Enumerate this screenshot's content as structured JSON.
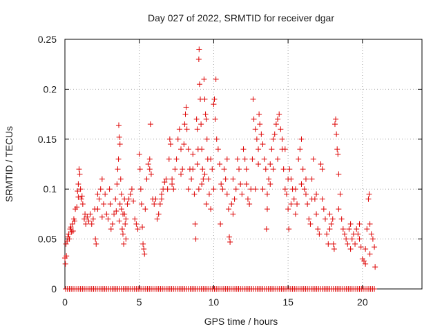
{
  "chart_data": {
    "type": "scatter",
    "title": "Day 027 of 2022, SRMTID for receiver dgar",
    "xlabel": "GPS time / hours",
    "ylabel": "SRMTID / TECUs",
    "xlim": [
      0,
      24
    ],
    "ylim": [
      0,
      0.25
    ],
    "xticks": [
      0,
      5,
      10,
      15,
      20
    ],
    "xtick_labels": [
      "0",
      "5",
      "10",
      "15",
      "20"
    ],
    "yticks": [
      0,
      0.05,
      0.1,
      0.15,
      0.2,
      0.25
    ],
    "ytick_labels": [
      "0",
      "0.05",
      "0.1",
      "0.15",
      "0.2",
      "0.25"
    ],
    "grid": true,
    "marker": "plus",
    "color": "#dd0000",
    "series": [
      {
        "name": "SRMTID",
        "zero_markers": {
          "x_start": 0.05,
          "x_end": 20.9,
          "step": 0.125,
          "y": 0
        },
        "points": [
          [
            0.0,
            0.031
          ],
          [
            0.03,
            0.025
          ],
          [
            0.07,
            0.045
          ],
          [
            0.1,
            0.033
          ],
          [
            0.15,
            0.048
          ],
          [
            0.2,
            0.052
          ],
          [
            0.25,
            0.055
          ],
          [
            0.3,
            0.05
          ],
          [
            0.35,
            0.06
          ],
          [
            0.4,
            0.062
          ],
          [
            0.45,
            0.057
          ],
          [
            0.5,
            0.065
          ],
          [
            0.55,
            0.058
          ],
          [
            0.6,
            0.07
          ],
          [
            0.65,
            0.068
          ],
          [
            0.7,
            0.08
          ],
          [
            0.8,
            0.082
          ],
          [
            0.85,
            0.098
          ],
          [
            0.9,
            0.092
          ],
          [
            0.95,
            0.12
          ],
          [
            1.0,
            0.115
          ],
          [
            1.05,
            0.1
          ],
          [
            1.1,
            0.09
          ],
          [
            1.2,
            0.085
          ],
          [
            1.3,
            0.07
          ],
          [
            1.35,
            0.075
          ],
          [
            1.4,
            0.065
          ],
          [
            1.5,
            0.072
          ],
          [
            1.6,
            0.068
          ],
          [
            1.7,
            0.075
          ],
          [
            1.8,
            0.065
          ],
          [
            1.9,
            0.07
          ],
          [
            2.0,
            0.08
          ],
          [
            2.05,
            0.05
          ],
          [
            2.1,
            0.045
          ],
          [
            2.2,
            0.095
          ],
          [
            2.3,
            0.09
          ],
          [
            2.4,
            0.1
          ],
          [
            2.5,
            0.11
          ],
          [
            2.6,
            0.085
          ],
          [
            2.7,
            0.095
          ],
          [
            2.8,
            0.075
          ],
          [
            2.9,
            0.07
          ],
          [
            3.0,
            0.1
          ],
          [
            3.05,
            0.085
          ],
          [
            3.1,
            0.06
          ],
          [
            3.2,
            0.065
          ],
          [
            3.3,
            0.075
          ],
          [
            3.4,
            0.09
          ],
          [
            3.5,
            0.105
          ],
          [
            3.55,
            0.12
          ],
          [
            3.6,
            0.13
          ],
          [
            3.62,
            0.164
          ],
          [
            3.65,
            0.152
          ],
          [
            3.7,
            0.145
          ],
          [
            3.75,
            0.11
          ],
          [
            3.8,
            0.08
          ],
          [
            3.85,
            0.06
          ],
          [
            3.9,
            0.055
          ],
          [
            3.95,
            0.045
          ],
          [
            4.0,
            0.075
          ],
          [
            4.05,
            0.065
          ],
          [
            4.1,
            0.07
          ],
          [
            4.2,
            0.085
          ],
          [
            4.3,
            0.09
          ],
          [
            4.4,
            0.095
          ],
          [
            4.5,
            0.1
          ],
          [
            4.6,
            0.088
          ],
          [
            4.7,
            0.07
          ],
          [
            4.8,
            0.065
          ],
          [
            4.9,
            0.06
          ],
          [
            5.0,
            0.135
          ],
          [
            5.05,
            0.12
          ],
          [
            5.1,
            0.1
          ],
          [
            5.15,
            0.085
          ],
          [
            5.2,
            0.062
          ],
          [
            5.25,
            0.045
          ],
          [
            5.3,
            0.04
          ],
          [
            5.35,
            0.035
          ],
          [
            5.4,
            0.08
          ],
          [
            5.5,
            0.11
          ],
          [
            5.6,
            0.125
          ],
          [
            5.7,
            0.13
          ],
          [
            5.75,
            0.165
          ],
          [
            5.8,
            0.115
          ],
          [
            5.9,
            0.09
          ],
          [
            6.0,
            0.085
          ],
          [
            6.1,
            0.09
          ],
          [
            6.2,
            0.07
          ],
          [
            6.3,
            0.075
          ],
          [
            6.4,
            0.085
          ],
          [
            6.5,
            0.095
          ],
          [
            6.6,
            0.1
          ],
          [
            6.7,
            0.107
          ],
          [
            6.8,
            0.11
          ],
          [
            6.9,
            0.1
          ],
          [
            7.0,
            0.13
          ],
          [
            7.05,
            0.15
          ],
          [
            7.1,
            0.145
          ],
          [
            7.2,
            0.105
          ],
          [
            7.3,
            0.1
          ],
          [
            7.4,
            0.12
          ],
          [
            7.5,
            0.13
          ],
          [
            7.6,
            0.15
          ],
          [
            7.7,
            0.16
          ],
          [
            7.8,
            0.14
          ],
          [
            7.9,
            0.12
          ],
          [
            8.0,
            0.145
          ],
          [
            8.05,
            0.165
          ],
          [
            8.1,
            0.175
          ],
          [
            8.15,
            0.182
          ],
          [
            8.2,
            0.16
          ],
          [
            8.3,
            0.14
          ],
          [
            8.4,
            0.12
          ],
          [
            8.5,
            0.11
          ],
          [
            8.6,
            0.12
          ],
          [
            8.7,
            0.095
          ],
          [
            8.75,
            0.065
          ],
          [
            8.8,
            0.05
          ],
          [
            8.85,
            0.17
          ],
          [
            8.9,
            0.16
          ],
          [
            8.95,
            0.14
          ],
          [
            9.0,
            0.23
          ],
          [
            9.02,
            0.24
          ],
          [
            9.05,
            0.205
          ],
          [
            9.1,
            0.19
          ],
          [
            9.15,
            0.165
          ],
          [
            9.2,
            0.14
          ],
          [
            9.25,
            0.12
          ],
          [
            9.3,
            0.11
          ],
          [
            9.35,
            0.21
          ],
          [
            9.4,
            0.19
          ],
          [
            9.45,
            0.175
          ],
          [
            9.5,
            0.17
          ],
          [
            9.55,
            0.15
          ],
          [
            9.6,
            0.13
          ],
          [
            9.65,
            0.11
          ],
          [
            9.7,
            0.095
          ],
          [
            9.8,
            0.08
          ],
          [
            9.9,
            0.12
          ],
          [
            10.0,
            0.185
          ],
          [
            10.05,
            0.19
          ],
          [
            10.1,
            0.17
          ],
          [
            10.15,
            0.21
          ],
          [
            10.2,
            0.15
          ],
          [
            10.3,
            0.14
          ],
          [
            10.4,
            0.125
          ],
          [
            10.45,
            0.065
          ],
          [
            10.5,
            0.105
          ],
          [
            10.6,
            0.1
          ],
          [
            10.7,
            0.12
          ],
          [
            10.8,
            0.11
          ],
          [
            10.9,
            0.095
          ],
          [
            11.0,
            0.08
          ],
          [
            11.05,
            0.052
          ],
          [
            11.1,
            0.047
          ],
          [
            11.2,
            0.085
          ],
          [
            11.3,
            0.075
          ],
          [
            11.4,
            0.09
          ],
          [
            11.5,
            0.1
          ],
          [
            11.6,
            0.13
          ],
          [
            11.7,
            0.12
          ],
          [
            11.8,
            0.105
          ],
          [
            11.9,
            0.095
          ],
          [
            12.0,
            0.14
          ],
          [
            12.1,
            0.13
          ],
          [
            12.2,
            0.12
          ],
          [
            12.3,
            0.09
          ],
          [
            12.4,
            0.085
          ],
          [
            12.5,
            0.1
          ],
          [
            12.6,
            0.13
          ],
          [
            12.65,
            0.19
          ],
          [
            12.7,
            0.17
          ],
          [
            12.8,
            0.16
          ],
          [
            12.9,
            0.15
          ],
          [
            13.0,
            0.14
          ],
          [
            13.05,
            0.175
          ],
          [
            13.1,
            0.165
          ],
          [
            13.2,
            0.155
          ],
          [
            13.3,
            0.145
          ],
          [
            13.4,
            0.13
          ],
          [
            13.5,
            0.12
          ],
          [
            13.55,
            0.06
          ],
          [
            13.6,
            0.08
          ],
          [
            13.7,
            0.11
          ],
          [
            13.8,
            0.125
          ],
          [
            13.9,
            0.14
          ],
          [
            14.0,
            0.15
          ],
          [
            14.1,
            0.155
          ],
          [
            14.2,
            0.165
          ],
          [
            14.3,
            0.17
          ],
          [
            14.4,
            0.175
          ],
          [
            14.5,
            0.16
          ],
          [
            14.6,
            0.14
          ],
          [
            14.7,
            0.12
          ],
          [
            14.8,
            0.1
          ],
          [
            14.9,
            0.095
          ],
          [
            15.0,
            0.08
          ],
          [
            15.05,
            0.06
          ],
          [
            15.1,
            0.12
          ],
          [
            15.2,
            0.11
          ],
          [
            15.3,
            0.1
          ],
          [
            15.4,
            0.09
          ],
          [
            15.5,
            0.075
          ],
          [
            15.6,
            0.085
          ],
          [
            15.7,
            0.13
          ],
          [
            15.8,
            0.14
          ],
          [
            15.9,
            0.15
          ],
          [
            16.0,
            0.12
          ],
          [
            16.1,
            0.1
          ],
          [
            16.2,
            0.095
          ],
          [
            16.3,
            0.085
          ],
          [
            16.4,
            0.07
          ],
          [
            16.5,
            0.065
          ],
          [
            16.6,
            0.11
          ],
          [
            16.7,
            0.13
          ],
          [
            16.8,
            0.09
          ],
          [
            16.9,
            0.075
          ],
          [
            17.0,
            0.06
          ],
          [
            17.1,
            0.055
          ],
          [
            17.2,
            0.125
          ],
          [
            17.3,
            0.12
          ],
          [
            17.4,
            0.08
          ],
          [
            17.5,
            0.07
          ],
          [
            17.6,
            0.055
          ],
          [
            17.7,
            0.045
          ],
          [
            17.8,
            0.06
          ],
          [
            17.9,
            0.065
          ],
          [
            18.0,
            0.07
          ],
          [
            18.05,
            0.045
          ],
          [
            18.1,
            0.04
          ],
          [
            18.15,
            0.165
          ],
          [
            18.2,
            0.17
          ],
          [
            18.25,
            0.155
          ],
          [
            18.3,
            0.14
          ],
          [
            18.35,
            0.135
          ],
          [
            18.4,
            0.115
          ],
          [
            18.5,
            0.095
          ],
          [
            18.6,
            0.07
          ],
          [
            18.7,
            0.06
          ],
          [
            18.8,
            0.055
          ],
          [
            18.9,
            0.05
          ],
          [
            19.0,
            0.045
          ],
          [
            19.1,
            0.06
          ],
          [
            19.2,
            0.065
          ],
          [
            19.3,
            0.05
          ],
          [
            19.4,
            0.055
          ],
          [
            19.5,
            0.045
          ],
          [
            19.6,
            0.06
          ],
          [
            19.7,
            0.055
          ],
          [
            19.8,
            0.05
          ],
          [
            19.9,
            0.042
          ],
          [
            20.0,
            0.03
          ],
          [
            20.1,
            0.028
          ],
          [
            20.2,
            0.025
          ],
          [
            20.3,
            0.06
          ],
          [
            20.4,
            0.09
          ],
          [
            20.45,
            0.095
          ],
          [
            20.5,
            0.065
          ],
          [
            20.6,
            0.055
          ],
          [
            20.7,
            0.05
          ],
          [
            20.8,
            0.042
          ],
          [
            20.85,
            0.022
          ],
          [
            0.9,
            0.105
          ],
          [
            1.15,
            0.093
          ],
          [
            2.2,
            0.08
          ],
          [
            2.5,
            0.072
          ],
          [
            3.45,
            0.078
          ],
          [
            3.65,
            0.068
          ],
          [
            3.7,
            0.085
          ],
          [
            3.8,
            0.095
          ],
          [
            3.9,
            0.075
          ],
          [
            4.0,
            0.09
          ],
          [
            4.1,
            0.05
          ],
          [
            5.7,
            0.12
          ],
          [
            6.5,
            0.09
          ],
          [
            7.2,
            0.11
          ],
          [
            7.8,
            0.115
          ],
          [
            8.3,
            0.1
          ],
          [
            8.6,
            0.135
          ],
          [
            8.9,
            0.125
          ],
          [
            9.0,
            0.1
          ],
          [
            9.2,
            0.105
          ],
          [
            9.4,
            0.115
          ],
          [
            9.5,
            0.085
          ],
          [
            9.8,
            0.13
          ],
          [
            10.0,
            0.1
          ],
          [
            10.9,
            0.13
          ],
          [
            11.3,
            0.11
          ],
          [
            12.2,
            0.105
          ],
          [
            12.8,
            0.1
          ],
          [
            13.0,
            0.125
          ],
          [
            13.3,
            0.1
          ],
          [
            13.6,
            0.095
          ],
          [
            13.8,
            0.105
          ],
          [
            14.0,
            0.12
          ],
          [
            14.3,
            0.13
          ],
          [
            14.6,
            0.15
          ],
          [
            14.8,
            0.14
          ],
          [
            15.0,
            0.11
          ],
          [
            15.2,
            0.085
          ],
          [
            15.5,
            0.1
          ],
          [
            15.9,
            0.105
          ],
          [
            16.2,
            0.11
          ],
          [
            16.6,
            0.09
          ],
          [
            16.9,
            0.095
          ],
          [
            17.3,
            0.09
          ],
          [
            17.8,
            0.075
          ],
          [
            18.4,
            0.08
          ],
          [
            19.2,
            0.04
          ],
          [
            19.8,
            0.065
          ],
          [
            20.2,
            0.04
          ],
          [
            20.5,
            0.035
          ]
        ]
      }
    ]
  }
}
